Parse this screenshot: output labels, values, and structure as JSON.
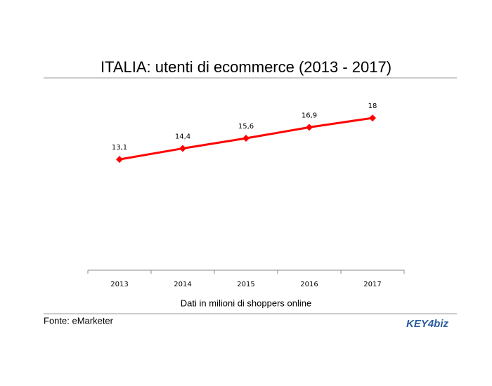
{
  "chart_data": {
    "type": "line",
    "title": "ITALIA: utenti di ecommerce (2013 - 2017)",
    "x_label": "Dati in milioni di shoppers online",
    "categories": [
      "2013",
      "2014",
      "2015",
      "2016",
      "2017"
    ],
    "values": [
      13.1,
      14.4,
      15.6,
      16.9,
      18
    ],
    "value_labels": [
      "13,1",
      "14,4",
      "15,6",
      "16,9",
      "18"
    ],
    "color": "#ff0000",
    "ylim": [
      0,
      20
    ]
  },
  "footer": {
    "source": "Fonte: eMarketer",
    "logo": "KEY4biz"
  }
}
